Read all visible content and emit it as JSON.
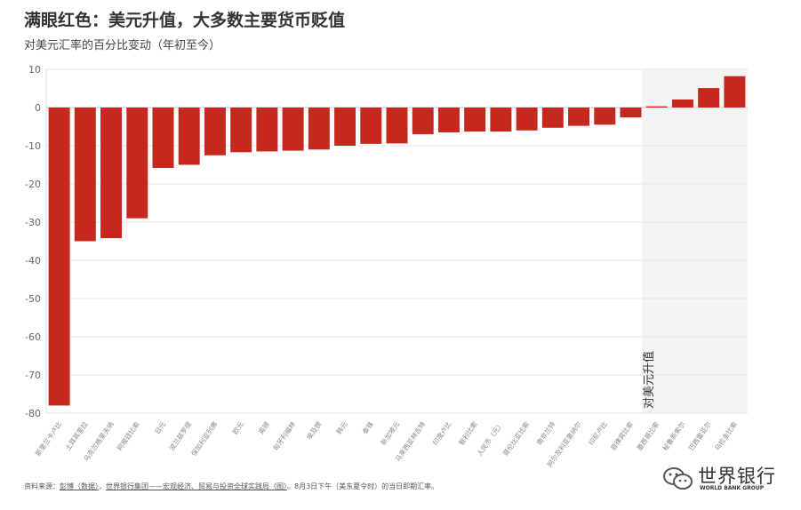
{
  "header": {
    "title": "满眼红色：美元升值，大多数主要货币贬值",
    "subtitle": "对美元汇率的百分比变动（年初至今）"
  },
  "chart_data": {
    "type": "bar",
    "title": "满眼红色：美元升值，大多数主要货币贬值",
    "subtitle": "对美元汇率的百分比变动（年初至今）",
    "xlabel": "",
    "ylabel": "",
    "ylim": [
      -80,
      10
    ],
    "yticks": [
      10,
      0,
      -10,
      -20,
      -30,
      -40,
      -50,
      -60,
      -70,
      -80
    ],
    "grid": true,
    "bar_color": "#c5281c",
    "categories": [
      "斯里兰卡卢比",
      "土耳其里拉",
      "乌克兰格里夫纳",
      "阿根廷比索",
      "日元",
      "波兰兹罗提",
      "保加利亚列弗",
      "欧元",
      "英镑",
      "匈牙利福林",
      "埃及镑",
      "韩元",
      "泰铢",
      "新加坡元",
      "马来西亚林吉特",
      "印度卢比",
      "智利比索",
      "人民币（元）",
      "哥伦比亚比索",
      "南非兰特",
      "阿尔及利亚第纳尔",
      "印尼卢比",
      "菲律宾比索",
      "墨西哥比索",
      "秘鲁新索尔",
      "巴西雷亚尔",
      "乌拉圭比索"
    ],
    "values": [
      -78.0,
      -35.0,
      -34.2,
      -29.0,
      -15.8,
      -15.0,
      -12.5,
      -11.7,
      -11.5,
      -11.3,
      -11.0,
      -10.0,
      -9.5,
      -9.4,
      -7.0,
      -6.5,
      -6.3,
      -6.3,
      -6.0,
      -5.3,
      -4.8,
      -4.5,
      -2.6,
      0.3,
      2.1,
      5.1,
      8.2
    ],
    "highlight_region": {
      "label": "对美元升值",
      "from_category": "墨西哥比索",
      "to_category": "乌拉圭比索",
      "fill": "#f4f4f4"
    }
  },
  "footer": {
    "source_label": "资料来源：",
    "source_link1": "彭博（数据）",
    "source_sep": "，",
    "source_link2": "世界银行集团——宏观经济、贸易与投资全球实践局（图）",
    "source_tail": "。8月3日下午（美东夏令时）的当日即期汇率。"
  },
  "logo": {
    "text": "世界银行",
    "subtext": "WORLD BANK GROUP",
    "icon": "wechat-icon"
  }
}
